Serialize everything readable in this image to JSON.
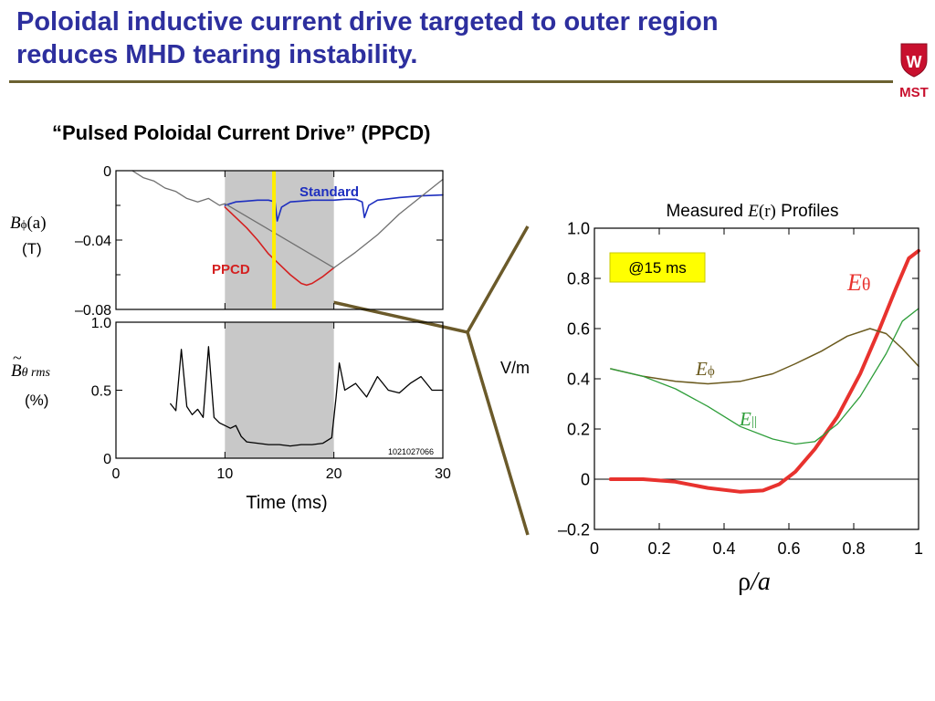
{
  "slide": {
    "title_line1": "Poloidal inductive current drive targeted to outer region",
    "title_line2": "reduces MHD tearing instability.",
    "subtitle": "“Pulsed Poloidal Current Drive” (PPCD)",
    "logo_text": "MST",
    "logo_badge": "W",
    "colors": {
      "title": "#2d2f9e",
      "rule": "#6b6130",
      "logo": "#c8102e"
    }
  },
  "chart_data": [
    {
      "id": "b-phi",
      "type": "line",
      "ylabel_symbol": "B",
      "ylabel_sub": "ϕ",
      "ylabel_arg": "(a)",
      "ylabel_unit": "(T)",
      "xlim": [
        0,
        30
      ],
      "ylim": [
        -0.08,
        0
      ],
      "yticks": [
        0,
        -0.04,
        -0.08
      ],
      "ytick_labels": [
        "0",
        "–0.04",
        "–0.08"
      ],
      "shaded_x": [
        10,
        20
      ],
      "marker_x": 14.5,
      "series": [
        {
          "name": "Standard",
          "color": "#1e2fbf",
          "x": [
            10,
            11,
            12,
            13,
            14,
            14.6,
            14.8,
            15.2,
            16,
            17,
            18,
            19,
            20,
            21,
            22,
            22.6,
            22.8,
            23.2,
            24,
            26,
            28,
            30
          ],
          "y": [
            -0.02,
            -0.018,
            -0.0175,
            -0.017,
            -0.017,
            -0.018,
            -0.029,
            -0.021,
            -0.018,
            -0.0175,
            -0.017,
            -0.017,
            -0.017,
            -0.0165,
            -0.0165,
            -0.018,
            -0.027,
            -0.02,
            -0.017,
            -0.0155,
            -0.0145,
            -0.014
          ]
        },
        {
          "name": "PPCD",
          "color": "#d42020",
          "x": [
            10,
            11,
            12,
            13,
            14,
            15,
            16,
            17,
            17.5,
            18,
            19,
            20
          ],
          "y": [
            -0.021,
            -0.027,
            -0.033,
            -0.04,
            -0.048,
            -0.054,
            -0.06,
            -0.065,
            -0.066,
            -0.065,
            -0.061,
            -0.056
          ]
        },
        {
          "name": "",
          "color": "#707070",
          "x": [
            1.5,
            2.5,
            3.5,
            4.5,
            5.5,
            6.5,
            7.5,
            8.5,
            9.5,
            10,
            20,
            22,
            24,
            26,
            28,
            30
          ],
          "y": [
            0,
            -0.004,
            -0.006,
            -0.01,
            -0.012,
            -0.016,
            -0.018,
            -0.016,
            -0.02,
            -0.019,
            -0.056,
            -0.047,
            -0.037,
            -0.025,
            -0.015,
            -0.005
          ]
        }
      ]
    },
    {
      "id": "b-theta-rms",
      "type": "line",
      "ylabel_symbol": "B",
      "ylabel_sub": "θ rms",
      "ylabel_tilde": "~",
      "ylabel_unit": "(%)",
      "xlabel": "Time (ms)",
      "xlim": [
        0,
        30
      ],
      "ylim": [
        0,
        1.0
      ],
      "yticks": [
        0,
        0.5,
        1.0
      ],
      "ytick_labels": [
        "0",
        "0.5",
        "1.0"
      ],
      "xticks": [
        0,
        10,
        20,
        30
      ],
      "xtick_labels": [
        "0",
        "10",
        "20",
        "30"
      ],
      "shaded_x": [
        10,
        20
      ],
      "shot_number": "1021027066",
      "series": [
        {
          "name": "",
          "color": "#000000",
          "x": [
            5,
            5.5,
            6,
            6.5,
            7,
            7.5,
            8,
            8.5,
            9,
            9.5,
            10,
            10.5,
            11,
            11.5,
            12,
            13,
            14,
            15,
            16,
            17,
            18,
            19,
            19.8,
            20.2,
            20.5,
            21,
            22,
            23,
            24,
            25,
            26,
            27,
            28,
            29,
            30
          ],
          "y": [
            0.4,
            0.35,
            0.8,
            0.38,
            0.32,
            0.36,
            0.3,
            0.82,
            0.3,
            0.26,
            0.24,
            0.22,
            0.24,
            0.16,
            0.12,
            0.11,
            0.1,
            0.1,
            0.09,
            0.1,
            0.1,
            0.11,
            0.15,
            0.45,
            0.7,
            0.5,
            0.55,
            0.45,
            0.6,
            0.5,
            0.48,
            0.55,
            0.6,
            0.5,
            0.5
          ]
        }
      ]
    },
    {
      "id": "e-profiles",
      "type": "line",
      "title_prefix": "Measured",
      "title_var": "E",
      "title_arg": "(r)",
      "title_suffix": "Profiles",
      "ylabel": "V/m",
      "xlabel_rho": "ρ",
      "xlabel_a": "/a",
      "xlim": [
        0,
        1
      ],
      "ylim": [
        -0.2,
        1.0
      ],
      "xticks": [
        0,
        0.2,
        0.4,
        0.6,
        0.8,
        1
      ],
      "xtick_labels": [
        "0",
        "0.2",
        "0.4",
        "0.6",
        "0.8",
        "1"
      ],
      "yticks": [
        -0.2,
        0,
        0.2,
        0.4,
        0.6,
        0.8,
        1.0
      ],
      "ytick_labels": [
        "–0.2",
        "0",
        "0.2",
        "0.4",
        "0.6",
        "0.8",
        "1.0"
      ],
      "annotation": "@15 ms",
      "series": [
        {
          "name": "E_θ",
          "label_symbol": "E",
          "label_sub": "θ",
          "color": "#e8322e",
          "x": [
            0.05,
            0.15,
            0.25,
            0.35,
            0.45,
            0.52,
            0.57,
            0.62,
            0.68,
            0.75,
            0.82,
            0.88,
            0.93,
            0.97,
            1.0
          ],
          "y": [
            0,
            0,
            -0.01,
            -0.035,
            -0.05,
            -0.045,
            -0.02,
            0.03,
            0.12,
            0.25,
            0.42,
            0.6,
            0.76,
            0.88,
            0.91
          ]
        },
        {
          "name": "E_ϕ",
          "label_symbol": "E",
          "label_sub": "ϕ",
          "color": "#6b5a1e",
          "x": [
            0.05,
            0.15,
            0.25,
            0.35,
            0.45,
            0.55,
            0.62,
            0.7,
            0.78,
            0.85,
            0.9,
            0.95,
            1.0
          ],
          "y": [
            0.44,
            0.41,
            0.39,
            0.38,
            0.39,
            0.42,
            0.46,
            0.51,
            0.57,
            0.6,
            0.58,
            0.52,
            0.45
          ]
        },
        {
          "name": "E_||",
          "label_symbol": "E",
          "label_sub": "||",
          "color": "#2e9e3a",
          "x": [
            0.05,
            0.15,
            0.25,
            0.35,
            0.45,
            0.55,
            0.62,
            0.68,
            0.75,
            0.82,
            0.9,
            0.95,
            1.0
          ],
          "y": [
            0.44,
            0.41,
            0.36,
            0.29,
            0.21,
            0.16,
            0.14,
            0.15,
            0.22,
            0.33,
            0.5,
            0.63,
            0.68
          ]
        }
      ]
    }
  ]
}
